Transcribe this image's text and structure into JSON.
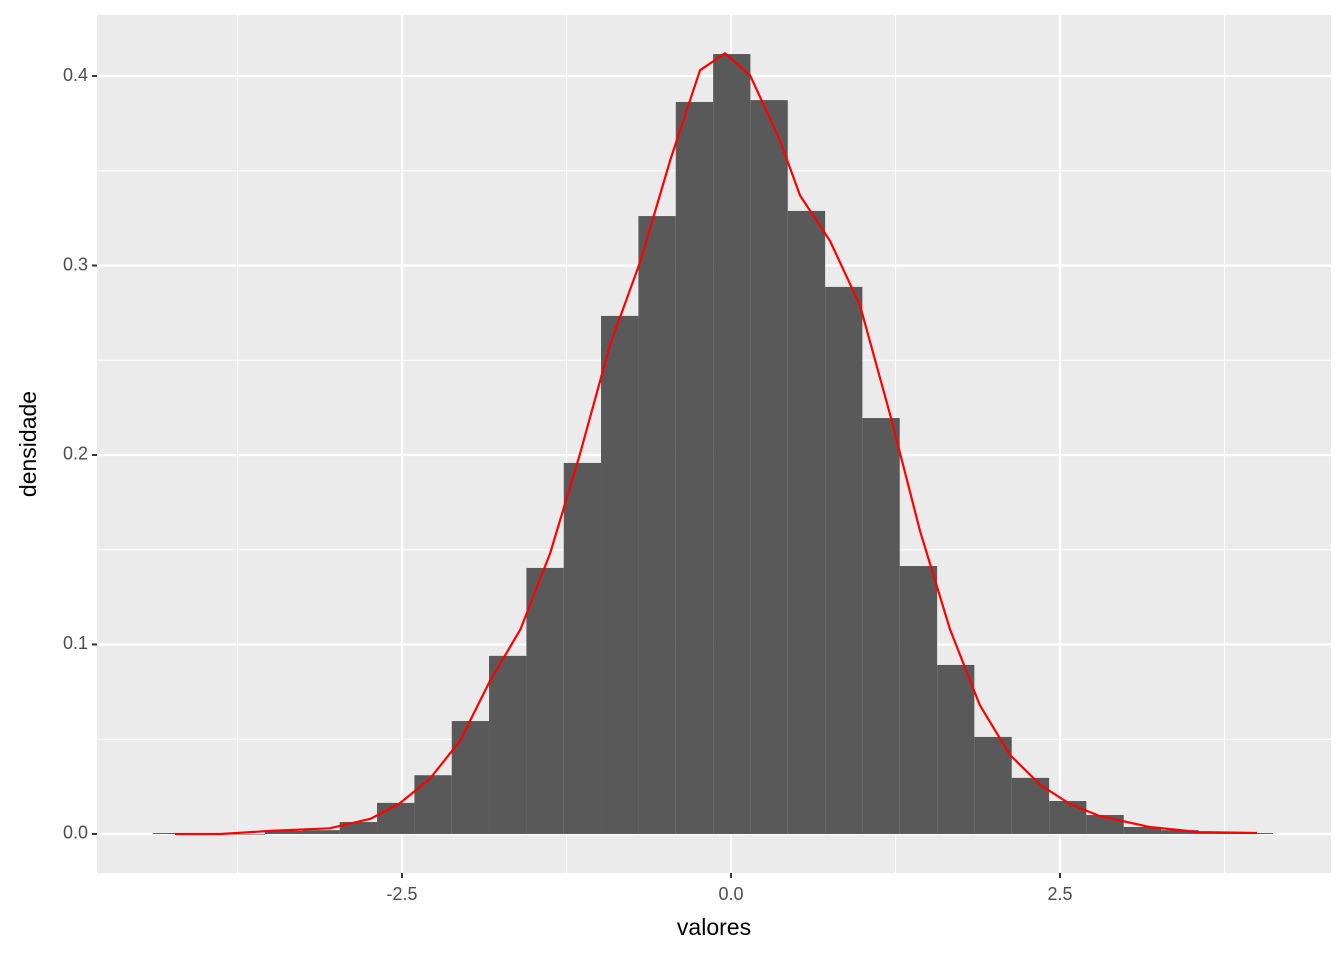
{
  "chart_data": {
    "type": "histogram",
    "x_label": "valores",
    "y_label": "densidade",
    "color": "#595959",
    "bins": [
      -4.392,
      -4.108,
      -3.825,
      -3.541,
      -3.257,
      -2.974,
      -2.69,
      -2.406,
      -2.122,
      -1.839,
      -1.555,
      -1.271,
      -0.988,
      -0.704,
      -0.42,
      -0.136,
      0.147,
      0.431,
      0.715,
      0.998,
      1.282,
      1.566,
      1.849,
      2.133,
      2.417,
      2.7,
      2.984,
      3.268,
      3.552,
      3.835,
      4.119
    ],
    "values": [
      0.0005,
      0,
      0,
      0.0016,
      0.002,
      0.0063,
      0.0164,
      0.031,
      0.0596,
      0.094,
      0.1404,
      0.1958,
      0.2734,
      0.3261,
      0.3863,
      0.4116,
      0.3873,
      0.3288,
      0.2887,
      0.2195,
      0.1414,
      0.0892,
      0.0512,
      0.0296,
      0.0174,
      0.01,
      0.0037,
      0.002,
      0.001,
      0.0005
    ],
    "overlay": {
      "type": "line",
      "color": "#ff0000",
      "x": [
        -4.225,
        -3.88,
        -3.5,
        -3.05,
        -2.74,
        -2.52,
        -2.29,
        -2.06,
        -1.83,
        -1.6,
        -1.375,
        -1.15,
        -0.92,
        -0.69,
        -0.46,
        -0.236,
        -0.046,
        0.144,
        0.372,
        0.524,
        0.752,
        0.98,
        1.21,
        1.436,
        1.664,
        1.89,
        2.12,
        2.35,
        2.576,
        2.8,
        3.18,
        3.56,
        3.997
      ],
      "values": [
        0,
        0,
        0.0016,
        0.003,
        0.008,
        0.016,
        0.029,
        0.049,
        0.081,
        0.108,
        0.148,
        0.2,
        0.258,
        0.302,
        0.356,
        0.403,
        0.412,
        0.4005,
        0.366,
        0.337,
        0.313,
        0.279,
        0.221,
        0.16,
        0.108,
        0.068,
        0.0417,
        0.0259,
        0.0158,
        0.0095,
        0.0037,
        0.001,
        0.0005
      ]
    },
    "xlim": [
      -4.818,
      4.559
    ],
    "ylim": [
      -0.0206,
      0.4322
    ],
    "xticks": [
      -2.5,
      {
        "value": 0,
        "label": "0.0"
      },
      2.5
    ],
    "yticks": [
      {
        "value": 0,
        "label": "0.0"
      },
      0.1,
      0.2,
      0.3,
      0.4
    ],
    "grid": true,
    "minor_grid": true
  }
}
